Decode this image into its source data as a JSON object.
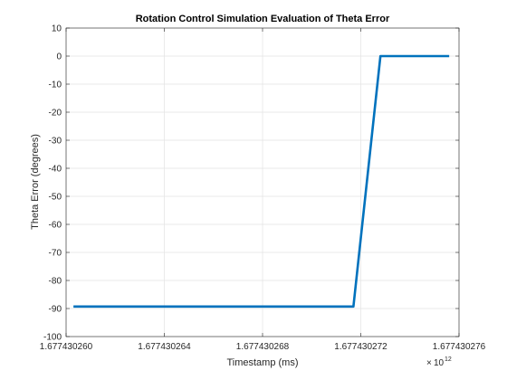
{
  "chart_data": {
    "type": "line",
    "title": "Rotation Control Simulation Evaluation of Theta Error",
    "xlabel": "Timestamp (ms)",
    "ylabel": "Theta Error (degrees)",
    "x_exponent_base": "10",
    "x_exponent_power": "12",
    "xlim": [
      1.67743026,
      1.677430276
    ],
    "ylim": [
      -100,
      10
    ],
    "xticks": [
      1.67743026,
      1.677430264,
      1.677430268,
      1.677430272,
      1.677430276
    ],
    "xtick_labels": [
      "1.677430260",
      "1.677430264",
      "1.677430268",
      "1.677430272",
      "1.677430276"
    ],
    "yticks": [
      10,
      0,
      -10,
      -20,
      -30,
      -40,
      -50,
      -60,
      -70,
      -80,
      -90,
      -100
    ],
    "ytick_labels": [
      "10",
      "0",
      "-10",
      "-20",
      "-30",
      "-40",
      "-50",
      "-60",
      "-70",
      "-80",
      "-90",
      "-100"
    ],
    "grid": true,
    "series": [
      {
        "color": "#0072bd",
        "x": [
          1.6774302603,
          1.6774302717,
          1.6774302728,
          1.6774302756
        ],
        "y": [
          -89.3,
          -89.3,
          0,
          0
        ]
      }
    ]
  }
}
